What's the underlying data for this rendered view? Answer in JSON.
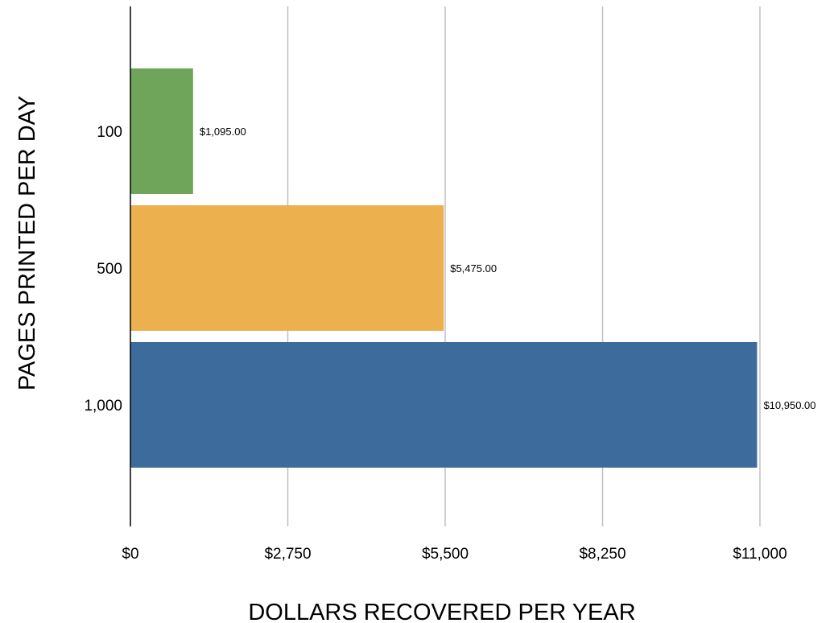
{
  "chart_data": {
    "type": "bar",
    "orientation": "horizontal",
    "categories": [
      "100",
      "500",
      "1,000"
    ],
    "values": [
      1095,
      5475,
      10950
    ],
    "data_labels": [
      "$1,095.00",
      "$5,475.00",
      "$10,950.00"
    ],
    "bar_colors": [
      "#6fa55a",
      "#ecb04e",
      "#3d6b9b"
    ],
    "xlabel": "DOLLARS RECOVERED PER YEAR",
    "ylabel": "PAGES PRINTED  PER DAY",
    "xlim": [
      0,
      11000
    ],
    "x_ticks": [
      0,
      2750,
      5500,
      8250,
      11000
    ],
    "x_tick_labels": [
      "$0",
      "$2,750",
      "$5,500",
      "$8,250",
      "$11,000"
    ],
    "grid": "vertical",
    "legend": "none"
  }
}
